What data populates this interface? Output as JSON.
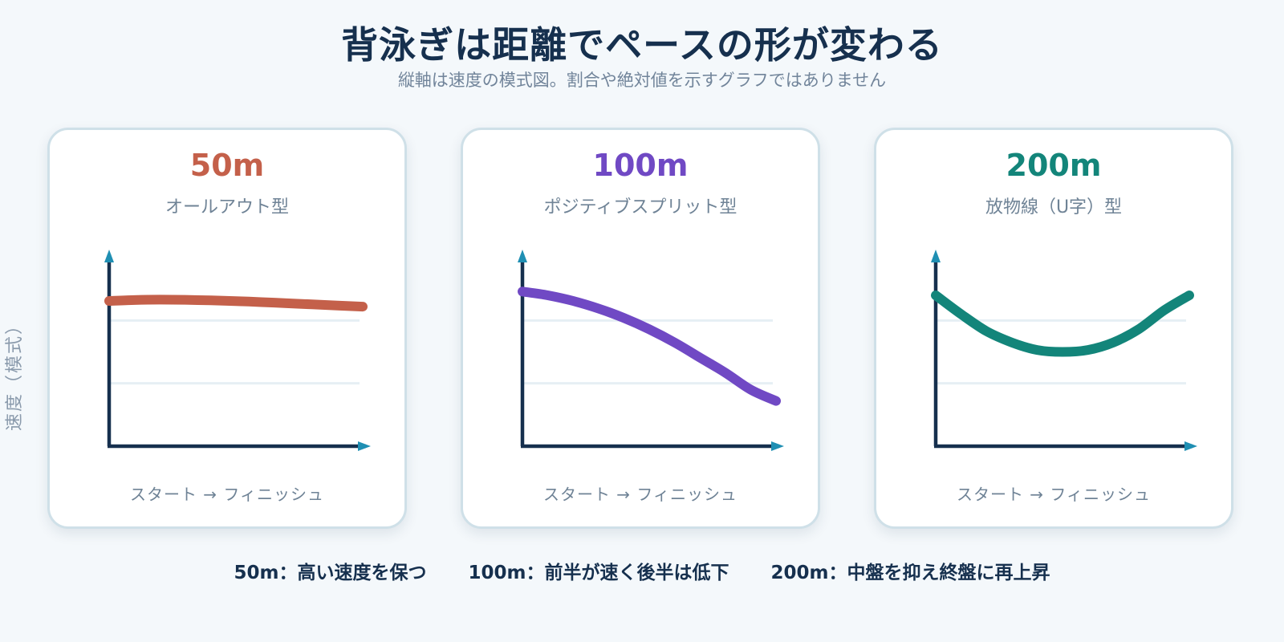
{
  "title": "背泳ぎは距離でペースの形が変わる",
  "subtitle": "縦軸は速度の模式図。割合や絶対値を示すグラフではありません",
  "y_axis_title": "速度（模式）",
  "colors": {
    "background": "#f4f8fb",
    "text_dark": "#16304e",
    "axis": "#16304e",
    "arrow_head": "#1f8fb3",
    "grid": "#e6eff4",
    "series_50m": "#c4604a",
    "series_100m": "#7049c4",
    "series_200m": "#13857a"
  },
  "panels": [
    {
      "title": "50m",
      "subtitle": "オールアウト型",
      "x_axis_label": "スタート → フィニッシュ"
    },
    {
      "title": "100m",
      "subtitle": "ポジティブスプリット型",
      "x_axis_label": "スタート → フィニッシュ"
    },
    {
      "title": "200m",
      "subtitle": "放物線（U字）型",
      "x_axis_label": "スタート → フィニッシュ"
    }
  ],
  "footer_notes": [
    "50m：高い速度を保つ",
    "100m：前半が速く後半は低下",
    "200m：中盤を抑え終盤に再上昇"
  ],
  "chart_data": [
    {
      "type": "line",
      "title": "50m",
      "subtitle": "オールアウト型",
      "xlabel": "スタート → フィニッシュ",
      "ylabel": "速度（模式）",
      "grid": true,
      "xlim": [
        0,
        1
      ],
      "ylim": [
        0,
        1
      ],
      "x": [
        0,
        0.1,
        0.2,
        0.3,
        0.4,
        0.5,
        0.6,
        0.7,
        0.8,
        0.9,
        1.0
      ],
      "y": [
        0.77,
        0.775,
        0.777,
        0.776,
        0.773,
        0.769,
        0.764,
        0.758,
        0.752,
        0.746,
        0.74
      ]
    },
    {
      "type": "line",
      "title": "100m",
      "subtitle": "ポジティブスプリット型",
      "xlabel": "スタート → フィニッシュ",
      "ylabel": "速度（模式）",
      "grid": true,
      "xlim": [
        0,
        1
      ],
      "ylim": [
        0,
        1
      ],
      "x": [
        0,
        0.1,
        0.2,
        0.3,
        0.4,
        0.5,
        0.6,
        0.7,
        0.8,
        0.9,
        1.0
      ],
      "y": [
        0.82,
        0.8,
        0.77,
        0.73,
        0.68,
        0.62,
        0.55,
        0.47,
        0.39,
        0.3,
        0.24
      ]
    },
    {
      "type": "line",
      "title": "200m",
      "subtitle": "放物線（U字）型",
      "xlabel": "スタート → フィニッシュ",
      "ylabel": "速度（模式）",
      "grid": true,
      "xlim": [
        0,
        1
      ],
      "ylim": [
        0,
        1
      ],
      "x": [
        0,
        0.1,
        0.2,
        0.3,
        0.4,
        0.5,
        0.6,
        0.7,
        0.8,
        0.9,
        1.0
      ],
      "y": [
        0.8,
        0.7,
        0.61,
        0.55,
        0.51,
        0.5,
        0.51,
        0.55,
        0.62,
        0.72,
        0.8
      ]
    }
  ]
}
